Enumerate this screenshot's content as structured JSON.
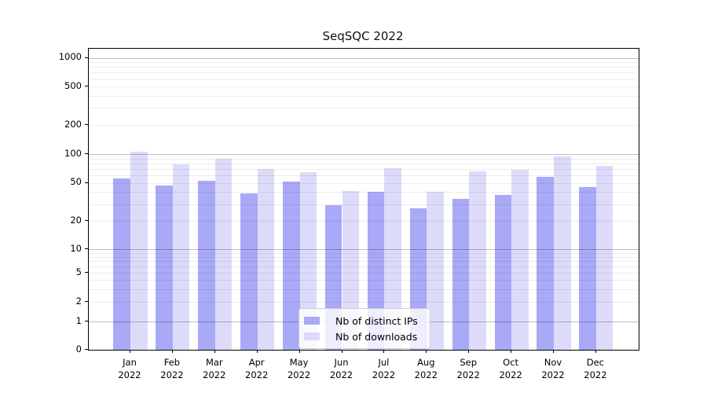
{
  "chart_data": {
    "type": "bar",
    "title": "SeqSQC 2022",
    "categories": [
      "Jan",
      "Feb",
      "Mar",
      "Apr",
      "May",
      "Jun",
      "Jul",
      "Aug",
      "Sep",
      "Oct",
      "Nov",
      "Dec"
    ],
    "year_label": "2022",
    "series": [
      {
        "name": "Nb of distinct IPs",
        "color": "#a9a9f7",
        "values": [
          55,
          47,
          52,
          39,
          51,
          29,
          40,
          27,
          34,
          37,
          58,
          45
        ]
      },
      {
        "name": "Nb of downloads",
        "color": "#dcdcfa",
        "values": [
          105,
          78,
          90,
          70,
          65,
          41,
          71,
          40,
          66,
          68,
          95,
          75
        ]
      }
    ],
    "yscale": "symlog",
    "ylabel": "",
    "xlabel": "",
    "y_ticks": [
      0,
      1,
      2,
      5,
      10,
      20,
      50,
      100,
      200,
      500,
      1000
    ],
    "y_minor_ticks": [
      3,
      4,
      6,
      7,
      8,
      9,
      30,
      40,
      60,
      70,
      80,
      90,
      300,
      400,
      600,
      700,
      800,
      900
    ],
    "ylim": [
      0,
      1250
    ],
    "grid": true,
    "legend_position": "lower center"
  },
  "colors": {
    "bar_dark": "#a9a9f7",
    "bar_light": "#dcdcfa",
    "grid_major": "#bfbfbf",
    "grid_minor": "#ebebeb",
    "spine": "#000000",
    "background": "#ffffff"
  }
}
